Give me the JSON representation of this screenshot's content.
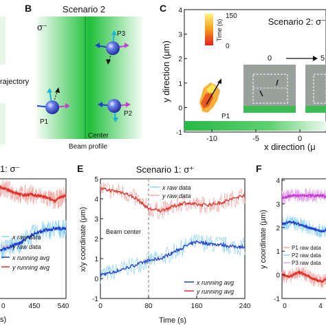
{
  "panels": {
    "A": {
      "label_fragment": "rajectory"
    },
    "B": {
      "letter": "B",
      "title": "Scenario 2",
      "sigma": "σ⁻",
      "center_label": "Center",
      "beam_label": "Beam profile",
      "particles": [
        "P1",
        "P2",
        "P3"
      ]
    },
    "C": {
      "letter": "C",
      "title": "Scenario 2: σ⁻",
      "ylabel": "y direction (μm)",
      "xlabel": "x direction (μ",
      "yticks": [
        "4",
        "3",
        "2",
        "1",
        "0",
        "-1"
      ],
      "xticks": [
        "-10",
        "-5",
        "0"
      ],
      "colorbar_title": "Time (s)",
      "colorbar_ticks": [
        "150",
        "0"
      ],
      "particle": "P1",
      "inset_start": "0",
      "inset_end": "5"
    },
    "D": {
      "title_fragment": "1: σ⁻",
      "legend": [
        "x raw data",
        "y raw data",
        "x running avg",
        "y running avg"
      ],
      "xticks": [
        "450",
        "540"
      ],
      "xtick_partial": "0",
      "xlabel_fragment": "s)"
    },
    "E": {
      "letter": "E",
      "title": "Scenario 1: σ⁺",
      "ylabel": "x/y coordinate (μm)",
      "xlabel": "Time (s)",
      "yticks": [
        "5",
        "4",
        "3",
        "2",
        "1",
        "0",
        "-1"
      ],
      "xticks": [
        "0",
        "80",
        "160",
        "240"
      ],
      "annotation": "Beam center",
      "legend_top": [
        "x raw data",
        "y raw data"
      ],
      "legend_bottom": [
        "x running avg",
        "y running avg"
      ]
    },
    "F": {
      "letter": "F",
      "ylabel": "y coordinate (μm)",
      "yticks": [
        "4",
        "3",
        "2",
        "1",
        "0",
        "-1"
      ],
      "legend": [
        "P1 raw data",
        "P2 raw data",
        "P3 raw data"
      ],
      "xtick_partial": "0",
      "xtick_partial2": "4"
    }
  },
  "colors": {
    "x_raw": "#8fd3f5",
    "y_raw": "#f4a9a4",
    "x_avg": "#1f3fcf",
    "y_avg": "#e0302a",
    "beam": "#34c759",
    "p1": "#e0302a",
    "p2": "#2a7fd6",
    "p3": "#c23fd0"
  },
  "chart_data": [
    {
      "type": "line",
      "panel": "E",
      "title": "Scenario 1: σ⁺",
      "xlabel": "Time (s)",
      "ylabel": "x/y coordinate (μm)",
      "xlim": [
        0,
        240
      ],
      "ylim": [
        -1,
        5
      ],
      "vline": 80,
      "grid": false,
      "x": [
        0,
        20,
        40,
        60,
        80,
        100,
        120,
        140,
        160,
        180,
        200,
        220,
        240
      ],
      "series": [
        {
          "name": "x running avg",
          "values": [
            0.2,
            0.3,
            0.5,
            0.7,
            0.9,
            1.0,
            1.3,
            1.6,
            1.85,
            1.75,
            1.7,
            1.6,
            1.6
          ]
        },
        {
          "name": "y running avg",
          "values": [
            4.5,
            4.4,
            4.3,
            4.0,
            3.5,
            3.4,
            3.6,
            3.8,
            3.7,
            3.7,
            3.8,
            4.0,
            4.2
          ]
        }
      ]
    },
    {
      "type": "line",
      "panel": "D",
      "title": "1: σ⁻",
      "xlim": [
        360,
        540
      ],
      "ylim": [
        -1,
        5
      ],
      "x": [
        360,
        390,
        420,
        450,
        480,
        510,
        540
      ],
      "series": [
        {
          "name": "x running avg",
          "values": [
            1.4,
            1.6,
            1.8,
            2.2,
            2.4,
            2.5,
            2.5
          ]
        },
        {
          "name": "y running avg",
          "values": [
            4.6,
            4.4,
            4.2,
            4.2,
            4.1,
            3.9,
            4.2
          ]
        }
      ]
    },
    {
      "type": "line",
      "panel": "F",
      "ylabel": "y coordinate (μm)",
      "ylim": [
        -1,
        4
      ],
      "x": [
        0,
        10,
        20,
        30,
        40,
        50,
        60
      ],
      "series": [
        {
          "name": "P1 raw data",
          "values": [
            0.0,
            -0.1,
            0.1,
            0.0,
            -0.2,
            -0.3,
            0.0
          ]
        },
        {
          "name": "P2 raw data",
          "values": [
            2.1,
            2.2,
            2.1,
            2.0,
            1.9,
            1.8,
            1.9
          ]
        },
        {
          "name": "P3 raw data",
          "values": [
            3.2,
            3.3,
            3.3,
            3.3,
            3.3,
            3.3,
            3.2
          ]
        }
      ]
    }
  ]
}
